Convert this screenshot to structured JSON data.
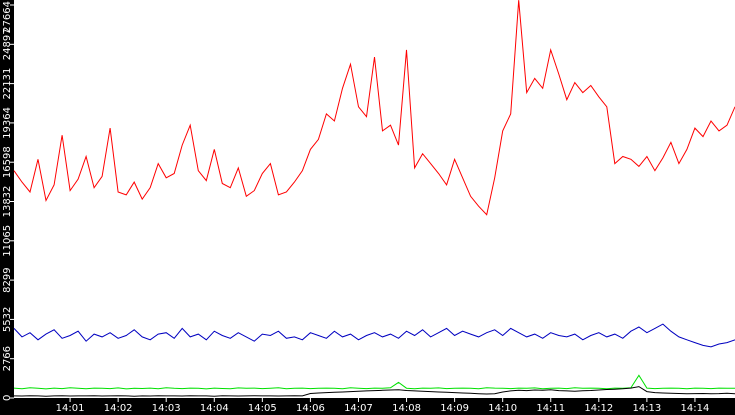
{
  "chart_data": {
    "type": "line",
    "categories": [
      null,
      null,
      null,
      null,
      null,
      null,
      null,
      "14:01",
      null,
      null,
      null,
      null,
      null,
      "14:02",
      null,
      null,
      null,
      null,
      null,
      "14:03",
      null,
      null,
      null,
      null,
      null,
      "14:04",
      null,
      null,
      null,
      null,
      null,
      "14:05",
      null,
      null,
      null,
      null,
      null,
      "14:06",
      null,
      null,
      null,
      null,
      null,
      "14:07",
      null,
      null,
      null,
      null,
      null,
      "14:08",
      null,
      null,
      null,
      null,
      null,
      "14:09",
      null,
      null,
      null,
      null,
      null,
      "14:10",
      null,
      null,
      null,
      null,
      null,
      "14:11",
      null,
      null,
      null,
      null,
      null,
      "14:12",
      null,
      null,
      null,
      null,
      null,
      "14:13",
      null,
      null,
      null,
      null,
      null,
      "14:14",
      null,
      null,
      null,
      null,
      null
    ],
    "ylim": [
      0,
      27664
    ],
    "yticks": [
      0,
      2766,
      5532,
      8299,
      11065,
      13832,
      16598,
      19364,
      22131,
      24897,
      27664
    ],
    "series": [
      {
        "color": "#ff0000",
        "values": [
          16000,
          15200,
          14500,
          16800,
          13900,
          15000,
          18500,
          14600,
          15400,
          17000,
          14800,
          15600,
          19000,
          14500,
          14300,
          15200,
          14000,
          14800,
          16500,
          15500,
          15800,
          17800,
          19200,
          16000,
          15300,
          17500,
          15100,
          14800,
          16200,
          14200,
          14600,
          15800,
          16500,
          14300,
          14500,
          15200,
          16000,
          17500,
          18200,
          20000,
          19500,
          21800,
          23500,
          20500,
          19800,
          24000,
          18800,
          19200,
          17800,
          24500,
          16200,
          17200,
          16500,
          15800,
          15000,
          16800,
          15500,
          14200,
          13500,
          12900,
          15500,
          18800,
          20000,
          28000,
          21500,
          22500,
          21800,
          24500,
          22800,
          21000,
          22200,
          21500,
          22000,
          21200,
          20500,
          16500,
          17000,
          16800,
          16300,
          17000,
          16000,
          16900,
          18000,
          16500,
          17500,
          19000,
          18400,
          19500,
          18800,
          19200,
          20500
        ]
      },
      {
        "color": "#0000c0",
        "values": [
          4900,
          4300,
          4600,
          4100,
          4500,
          4800,
          4200,
          4400,
          4700,
          4000,
          4500,
          4300,
          4600,
          4200,
          4400,
          4800,
          4300,
          4100,
          4500,
          4600,
          4200,
          4900,
          4300,
          4500,
          4100,
          4700,
          4400,
          4200,
          4600,
          4300,
          4000,
          4500,
          4400,
          4700,
          4200,
          4300,
          4100,
          4600,
          4400,
          4200,
          4700,
          4300,
          4500,
          4100,
          4400,
          4600,
          4300,
          4500,
          4200,
          4700,
          4400,
          4800,
          4300,
          4600,
          4900,
          4400,
          4700,
          4500,
          4300,
          4600,
          4800,
          4400,
          4900,
          4600,
          4300,
          4500,
          4200,
          4600,
          4400,
          4300,
          4500,
          4100,
          4400,
          4600,
          4300,
          4500,
          4200,
          4700,
          5000,
          4600,
          4900,
          5200,
          4700,
          4300,
          4100,
          3900,
          3700,
          3600,
          3800,
          3900,
          4100
        ]
      },
      {
        "color": "#00e000",
        "values": [
          700,
          650,
          720,
          680,
          640,
          700,
          660,
          720,
          690,
          650,
          700,
          680,
          660,
          710,
          640,
          690,
          670,
          700,
          650,
          720,
          680,
          660,
          700,
          690,
          640,
          700,
          670,
          650,
          710,
          680,
          700,
          660,
          690,
          720,
          650,
          680,
          700,
          660,
          690,
          700,
          680,
          650,
          720,
          690,
          660,
          700,
          680,
          720,
          1100,
          690,
          650,
          700,
          680,
          710,
          660,
          690,
          700,
          680,
          650,
          720,
          700,
          690,
          660,
          700,
          680,
          710,
          650,
          690,
          700,
          660,
          720,
          680,
          700,
          690,
          650,
          700,
          680,
          720,
          1600,
          700,
          660,
          690,
          700,
          680,
          650,
          700,
          690,
          660,
          700,
          680,
          690
        ]
      },
      {
        "color": "#000000",
        "values": [
          150,
          140,
          160,
          150,
          130,
          150,
          160,
          140,
          150,
          150,
          160,
          140,
          150,
          160,
          150,
          130,
          150,
          140,
          160,
          150,
          150,
          140,
          160,
          150,
          150,
          130,
          160,
          150,
          140,
          150,
          160,
          150,
          150,
          140,
          150,
          160,
          150,
          320,
          350,
          380,
          400,
          420,
          450,
          470,
          500,
          520,
          540,
          560,
          580,
          530,
          500,
          480,
          450,
          420,
          400,
          380,
          350,
          330,
          300,
          280,
          300,
          420,
          500,
          550,
          520,
          560,
          540,
          580,
          520,
          500,
          480,
          510,
          530,
          560,
          600,
          620,
          650,
          700,
          800,
          450,
          380,
          350,
          330,
          320,
          300,
          310,
          320,
          300,
          310,
          330,
          300
        ]
      }
    ]
  }
}
